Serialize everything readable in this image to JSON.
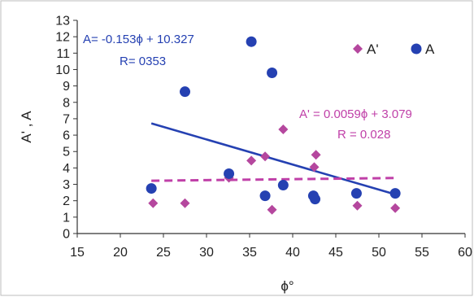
{
  "chart_data": {
    "type": "scatter",
    "title": "",
    "xlabel": "ϕ°",
    "ylabel": "A' , A",
    "xlim": [
      15,
      60
    ],
    "ylim": [
      0,
      13
    ],
    "x_ticks": [
      15,
      20,
      25,
      30,
      35,
      40,
      45,
      50,
      55,
      60
    ],
    "y_ticks": [
      0,
      1,
      2,
      3,
      4,
      5,
      6,
      7,
      8,
      9,
      10,
      11,
      12,
      13
    ],
    "grid": false,
    "legend_position": "top-right",
    "series": [
      {
        "name": "A'",
        "marker": "diamond",
        "color": "#b5479e",
        "points": [
          {
            "x": 23.8,
            "y": 1.85
          },
          {
            "x": 27.5,
            "y": 1.85
          },
          {
            "x": 32.6,
            "y": 3.4
          },
          {
            "x": 35.2,
            "y": 4.45
          },
          {
            "x": 36.8,
            "y": 4.7
          },
          {
            "x": 37.6,
            "y": 1.45
          },
          {
            "x": 38.9,
            "y": 6.35
          },
          {
            "x": 42.5,
            "y": 4.05
          },
          {
            "x": 42.7,
            "y": 4.8
          },
          {
            "x": 47.5,
            "y": 1.7
          },
          {
            "x": 51.9,
            "y": 1.55
          }
        ]
      },
      {
        "name": "A",
        "marker": "circle",
        "color": "#2541b2",
        "points": [
          {
            "x": 23.6,
            "y": 2.75
          },
          {
            "x": 27.5,
            "y": 8.65
          },
          {
            "x": 32.6,
            "y": 3.65
          },
          {
            "x": 35.2,
            "y": 11.7
          },
          {
            "x": 36.8,
            "y": 2.3
          },
          {
            "x": 37.6,
            "y": 9.8
          },
          {
            "x": 38.9,
            "y": 2.95
          },
          {
            "x": 42.4,
            "y": 2.3
          },
          {
            "x": 42.6,
            "y": 2.1
          },
          {
            "x": 47.4,
            "y": 2.45
          },
          {
            "x": 51.9,
            "y": 2.45
          }
        ]
      }
    ],
    "trendlines": [
      {
        "series": "A",
        "slope": -0.153,
        "intercept": 10.327,
        "x_range": [
          23.6,
          51.9
        ],
        "style": "solid",
        "color": "#2541b2",
        "equation_label": "A= -0.153ϕ + 10.327",
        "r_label": "R= 0353"
      },
      {
        "series": "A'",
        "slope": 0.0059,
        "intercept": 3.079,
        "x_range": [
          23.6,
          51.9
        ],
        "style": "dashed",
        "color": "#c040a8",
        "equation_label": "A' = 0.0059ϕ + 3.079",
        "r_label": "R = 0.028"
      }
    ]
  }
}
